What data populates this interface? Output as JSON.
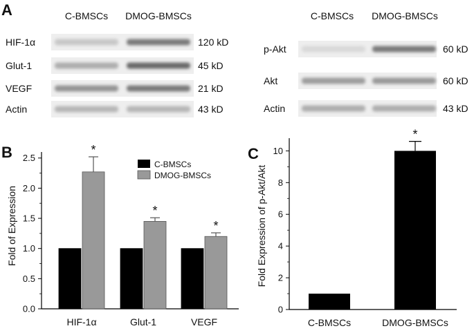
{
  "panels": {
    "a": "A",
    "b": "B",
    "c": "C"
  },
  "blot_left": {
    "columns": [
      "C-BMSCs",
      "DMOG-BMSCs"
    ],
    "rows": [
      {
        "label": "HIF-1α",
        "size": "120 kD",
        "intensity": [
          0.15,
          0.6
        ]
      },
      {
        "label": "Glut-1",
        "size": "45 kD",
        "intensity": [
          0.3,
          0.7
        ]
      },
      {
        "label": "VEGF",
        "size": "21 kD",
        "intensity": [
          0.45,
          0.6
        ]
      },
      {
        "label": "Actin",
        "size": "43 kD",
        "intensity": [
          0.25,
          0.25
        ]
      }
    ]
  },
  "blot_right": {
    "columns": [
      "C-BMSCs",
      "DMOG-BMSCs"
    ],
    "rows": [
      {
        "label": "p-Akt",
        "size": "60 kD",
        "intensity": [
          0.05,
          0.6
        ]
      },
      {
        "label": "Akt",
        "size": "60 kD",
        "intensity": [
          0.4,
          0.42
        ]
      },
      {
        "label": "Actin",
        "size": "43 kD",
        "intensity": [
          0.3,
          0.3
        ]
      }
    ]
  },
  "chart_data": [
    {
      "panel": "B",
      "type": "bar",
      "categories": [
        "HIF-1α",
        "Glut-1",
        "VEGF"
      ],
      "series": [
        {
          "name": "C-BMSCs",
          "values": [
            1.0,
            1.0,
            1.0
          ],
          "errors": [
            0,
            0,
            0
          ],
          "color": "#000000"
        },
        {
          "name": "DMOG-BMSCs",
          "values": [
            2.27,
            1.45,
            1.2
          ],
          "errors": [
            0.25,
            0.06,
            0.06
          ],
          "color": "#999999"
        }
      ],
      "significance": [
        "*",
        "*",
        "*"
      ],
      "xlabel": "",
      "ylabel": "Fold of Expression",
      "ylim": [
        0.0,
        2.6
      ],
      "yticks": [
        "0.0",
        "0.5",
        "1.0",
        "1.5",
        "2.0",
        "2.5"
      ],
      "legend": "top-center",
      "grid": false
    },
    {
      "panel": "C",
      "type": "bar",
      "categories": [
        "C-BMSCs",
        "DMOG-BMSCs"
      ],
      "values": [
        1.0,
        10.0
      ],
      "errors": [
        0,
        0.6
      ],
      "significance": [
        "",
        "*"
      ],
      "color": "#000000",
      "xlabel": "",
      "ylabel": "Fold Expression of p-Akt/Akt",
      "ylim": [
        0,
        10.8
      ],
      "yticks": [
        "0",
        "2",
        "4",
        "6",
        "8",
        "10"
      ],
      "grid": false
    }
  ]
}
